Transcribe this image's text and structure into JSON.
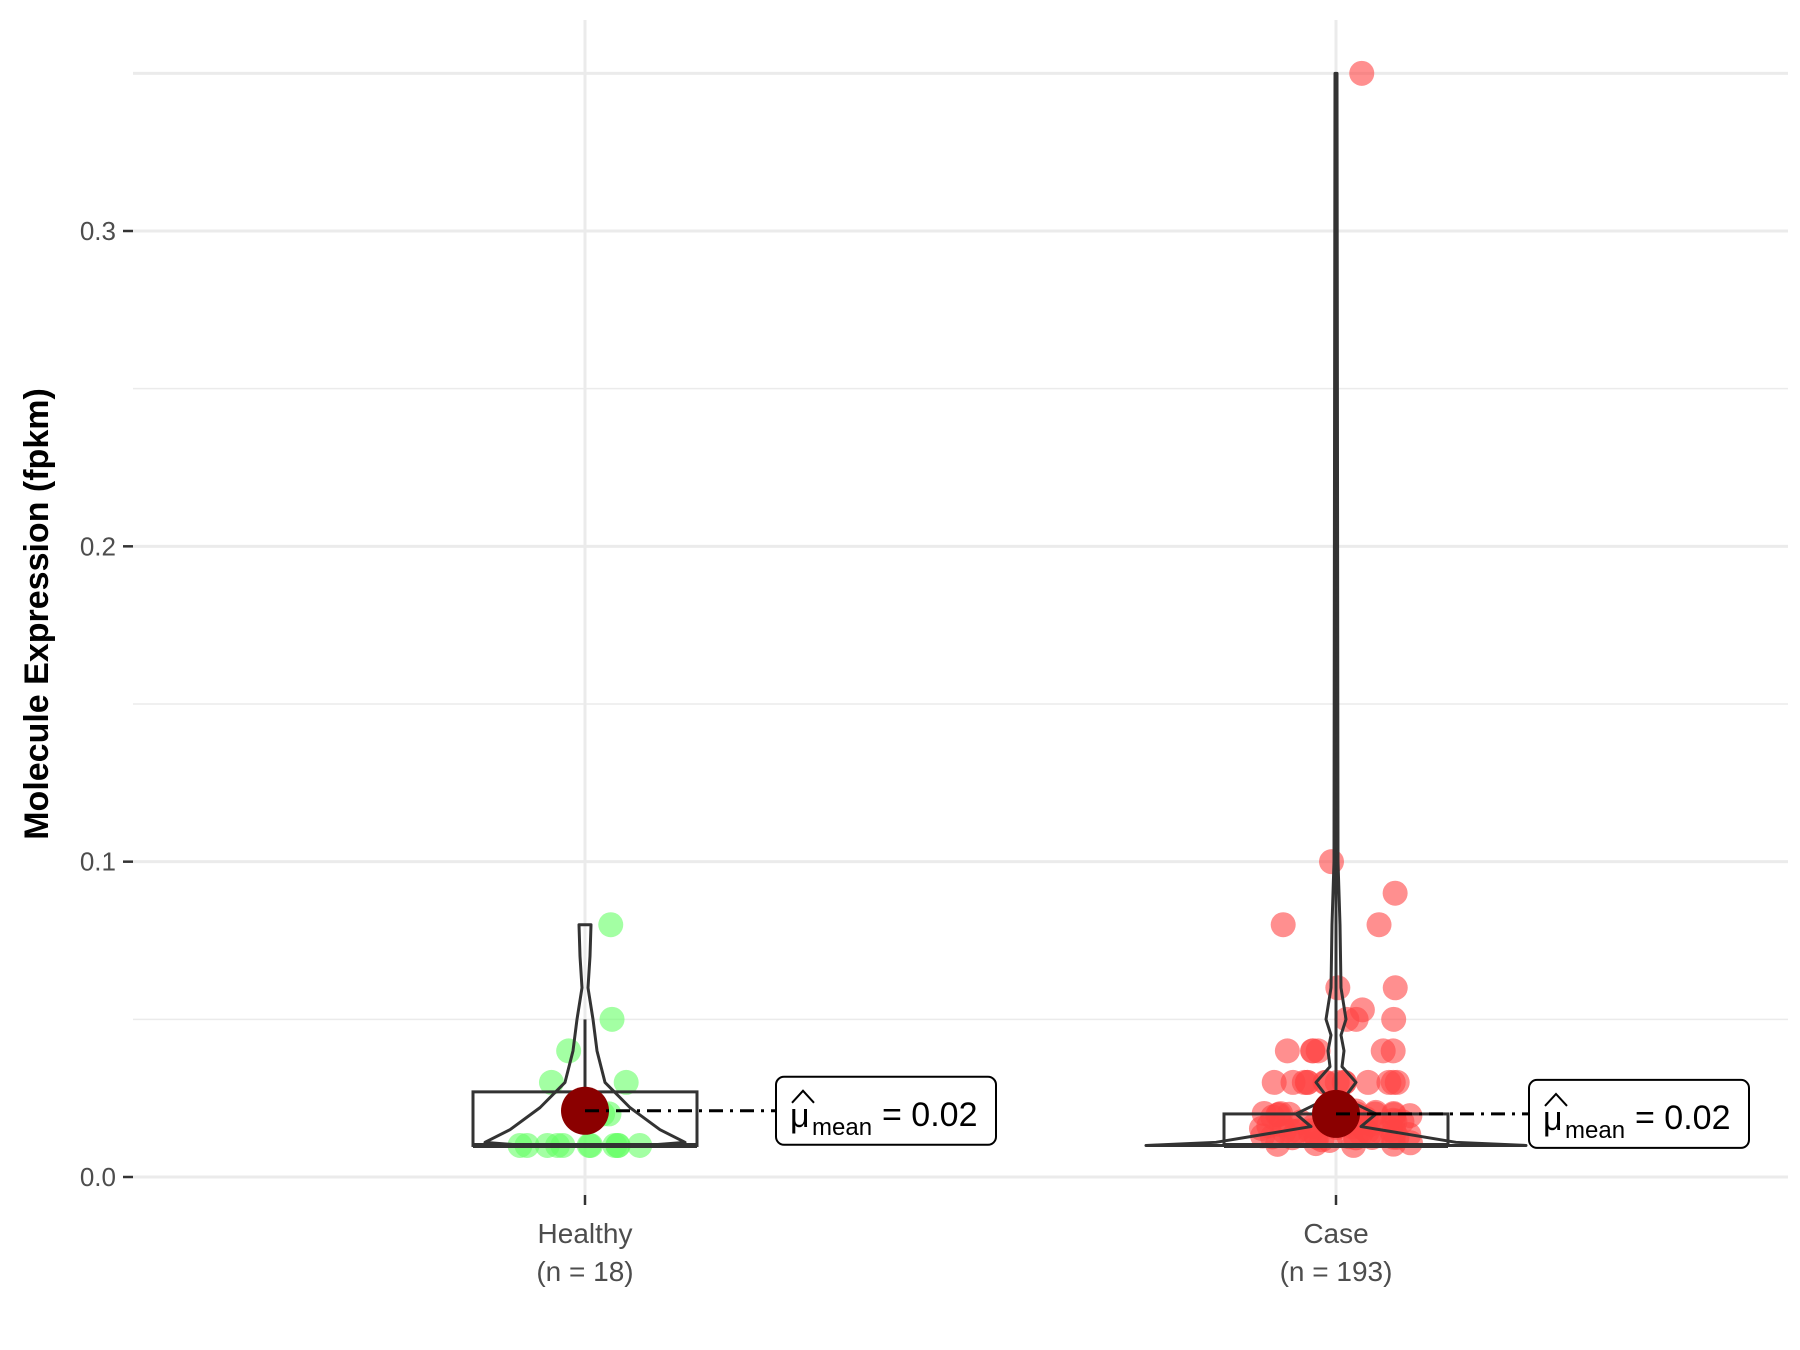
{
  "chart_data": {
    "type": "violin-box-scatter",
    "ylabel": "Molecule Expression (fpkm)",
    "ylim": [
      -0.0035,
      0.358
    ],
    "y_ticks": [
      0.0,
      0.1,
      0.2,
      0.3
    ],
    "y_tick_labels": [
      "0.0",
      "0.1",
      "0.2",
      "0.3"
    ],
    "grid": true,
    "colors": {
      "healthy_points": "#66ff66",
      "case_points": "#ff4444",
      "mean_point": "#8b0000",
      "box_line": "#333333",
      "grid": "#ebebeb"
    },
    "groups": [
      {
        "name": "Healthy",
        "n_label": "(n = 18)",
        "box": {
          "q1": 0.01,
          "median": 0.01,
          "q3": 0.027,
          "whisker_low": 0.01,
          "whisker_high": 0.05
        },
        "mean": 0.021,
        "mean_label_symbol": "μ",
        "mean_label_sub": "mean",
        "mean_label_value": "= 0.02",
        "violin_max": 0.08,
        "points": [
          0.01,
          0.01,
          0.01,
          0.01,
          0.01,
          0.01,
          0.01,
          0.01,
          0.01,
          0.01,
          0.02,
          0.02,
          0.03,
          0.03,
          0.04,
          0.05,
          0.08,
          0.01
        ]
      },
      {
        "name": "Case",
        "n_label": "(n = 193)",
        "box": {
          "q1": 0.01,
          "median": 0.01,
          "q3": 0.02,
          "whisker_low": 0.01,
          "whisker_high": 0.35
        },
        "mean": 0.02,
        "mean_label_symbol": "μ",
        "mean_label_sub": "mean",
        "mean_label_value": "= 0.02",
        "violin_max": 0.35,
        "points": [
          0.35,
          0.1,
          0.09,
          0.08,
          0.08,
          0.06,
          0.06,
          0.053,
          0.05,
          0.05,
          0.05,
          0.04,
          0.04,
          0.04,
          0.04,
          0.04,
          0.04,
          0.03,
          0.03,
          0.03,
          0.03,
          0.03,
          0.03,
          0.03,
          0.03,
          0.03,
          0.03,
          0.03,
          0.03,
          0.03,
          0.03
        ]
      }
    ]
  }
}
